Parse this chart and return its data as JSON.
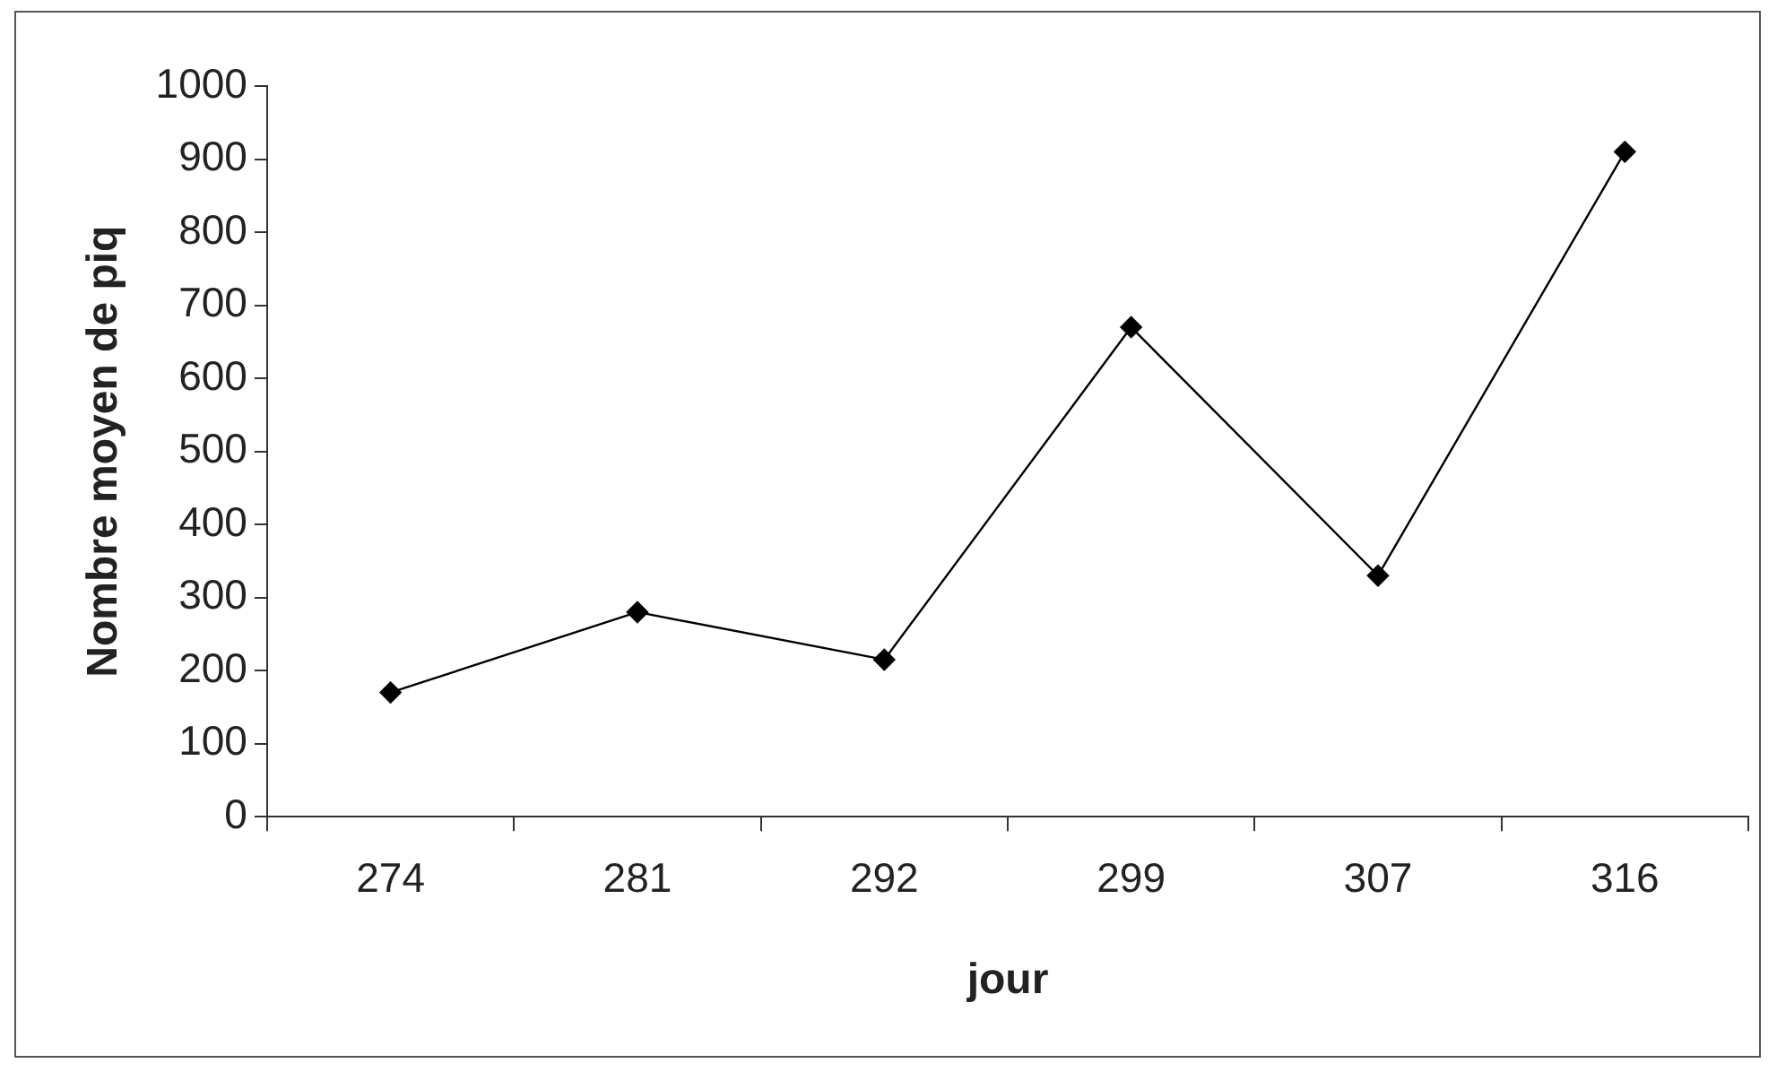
{
  "chart_data": {
    "type": "line",
    "xlabel": "jour",
    "ylabel": "Nombre moyen de piq",
    "categories": [
      "274",
      "281",
      "292",
      "299",
      "307",
      "316"
    ],
    "series": [
      {
        "color": "#000000",
        "values": [
          170,
          280,
          215,
          670,
          330,
          910
        ]
      }
    ],
    "ylim": [
      0,
      1000
    ],
    "yticks": [
      0,
      100,
      200,
      300,
      400,
      500,
      600,
      700,
      800,
      900,
      1000
    ],
    "grid": false,
    "legend": false,
    "marker": "diamond",
    "line_style": "solid"
  }
}
